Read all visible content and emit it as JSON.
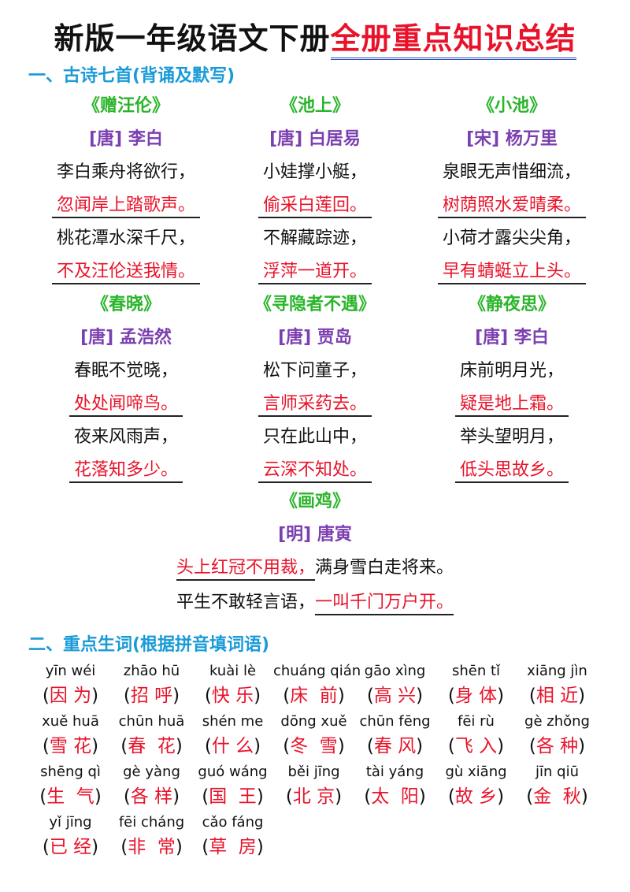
{
  "title": {
    "black": "新版一年级语文下册",
    "red": "全册重点知识总结"
  },
  "section1": "一、古诗七首(背诵及默写)",
  "poems": [
    {
      "title": "《赠汪伦》",
      "author": "[唐] 李白",
      "lines": [
        {
          "text": "李白乘舟将欲行，",
          "red": false
        },
        {
          "text": "忽闻岸上踏歌声。",
          "red": true
        },
        {
          "text": "桃花潭水深千尺，",
          "red": false
        },
        {
          "text": "不及汪伦送我情。",
          "red": true
        }
      ]
    },
    {
      "title": "《池上》",
      "author": "[唐] 白居易",
      "lines": [
        {
          "text": "小娃撑小艇，",
          "red": false
        },
        {
          "text": "偷采白莲回。",
          "red": true
        },
        {
          "text": "不解藏踪迹，",
          "red": false
        },
        {
          "text": "浮萍一道开。",
          "red": true
        }
      ]
    },
    {
      "title": "《小池》",
      "author": "[宋] 杨万里",
      "lines": [
        {
          "text": "泉眼无声惜细流，",
          "red": false
        },
        {
          "text": "树荫照水爱晴柔。",
          "red": true
        },
        {
          "text": "小荷才露尖尖角，",
          "red": false
        },
        {
          "text": "早有蜻蜓立上头。",
          "red": true
        }
      ]
    },
    {
      "title": "《春晓》",
      "author": "[唐] 孟浩然",
      "lines": [
        {
          "text": "春眠不觉晓，",
          "red": false
        },
        {
          "text": "处处闻啼鸟。",
          "red": true
        },
        {
          "text": "夜来风雨声，",
          "red": false
        },
        {
          "text": "花落知多少。",
          "red": true
        }
      ]
    },
    {
      "title": "《寻隐者不遇》",
      "author": "[唐] 贾岛",
      "lines": [
        {
          "text": "松下问童子，",
          "red": false
        },
        {
          "text": "言师采药去。",
          "red": true
        },
        {
          "text": "只在此山中，",
          "red": false
        },
        {
          "text": "云深不知处。",
          "red": true
        }
      ]
    },
    {
      "title": "《静夜思》",
      "author": "[唐] 李白",
      "lines": [
        {
          "text": "床前明月光，",
          "red": false
        },
        {
          "text": "疑是地上霜。",
          "red": true
        },
        {
          "text": "举头望明月，",
          "red": false
        },
        {
          "text": "低头思故乡。",
          "red": true
        }
      ]
    }
  ],
  "huaji": {
    "title": "《画鸡》",
    "author": "[明] 唐寅",
    "line1_red": "头上红冠不用裁，",
    "line1_black": "满身雪白走将来。",
    "line2_black": "平生不敢轻言语，",
    "line2_red": "一叫千门万户开。"
  },
  "section2": "二、重点生词(根据拼音填词语)",
  "vocab": [
    [
      {
        "py": "yīn wéi",
        "hz": "因 为"
      },
      {
        "py": "zhāo hū",
        "hz": "招 呼"
      },
      {
        "py": "kuài lè",
        "hz": "快 乐"
      },
      {
        "py": "chuáng qián",
        "hz": "床  前"
      },
      {
        "py": "gāo xìng",
        "hz": "高 兴"
      },
      {
        "py": "shēn tǐ",
        "hz": "身 体"
      },
      {
        "py": "xiāng jìn",
        "hz": "相 近"
      }
    ],
    [
      {
        "py": "xuě huā",
        "hz": "雪 花"
      },
      {
        "py": "chūn huā",
        "hz": "春  花"
      },
      {
        "py": "shén me",
        "hz": "什 么"
      },
      {
        "py": "dōng xuě",
        "hz": "冬  雪"
      },
      {
        "py": "chūn fēng",
        "hz": "春 风"
      },
      {
        "py": "fēi rù",
        "hz": "飞 入"
      },
      {
        "py": "gè zhǒng",
        "hz": "各 种"
      }
    ],
    [
      {
        "py": "shēng qì",
        "hz": "生  气"
      },
      {
        "py": "gè yàng",
        "hz": "各 样"
      },
      {
        "py": "guó wáng",
        "hz": "国  王"
      },
      {
        "py": "běi jīng",
        "hz": "北 京"
      },
      {
        "py": "tài yáng",
        "hz": "太  阳"
      },
      {
        "py": "gù xiāng",
        "hz": "故 乡"
      },
      {
        "py": "jīn qiū",
        "hz": "金  秋"
      }
    ],
    [
      {
        "py": "yǐ jīng",
        "hz": "已 经"
      },
      {
        "py": "fēi cháng",
        "hz": "非  常"
      },
      {
        "py": "cǎo fáng",
        "hz": "草  房"
      }
    ]
  ]
}
